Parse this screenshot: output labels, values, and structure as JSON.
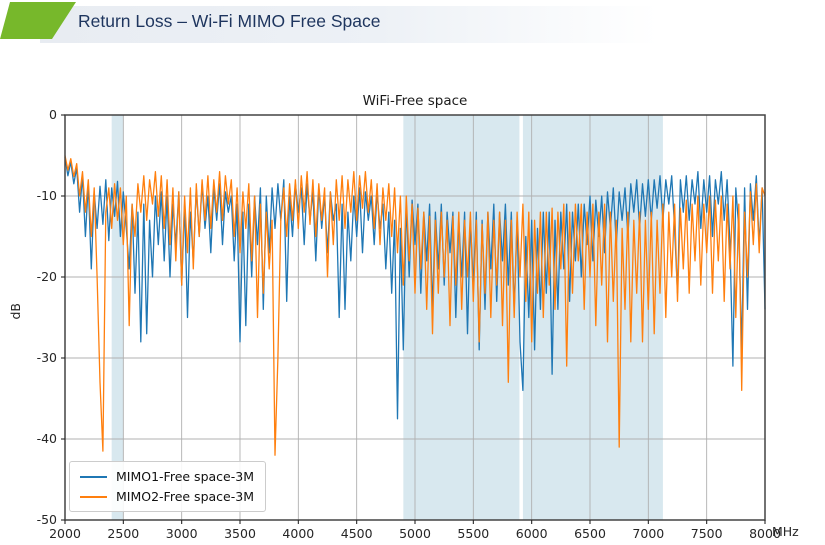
{
  "header": {
    "title": "Return Loss – Wi-Fi MIMO Free Space",
    "accent_color": "#77b82b",
    "title_color": "#1e355e"
  },
  "chart_data": {
    "type": "line",
    "title": "WiFi-Free space",
    "ylabel": "dB",
    "x_unit": "MHz",
    "xlim": [
      2000,
      8000
    ],
    "ylim": [
      -50,
      0
    ],
    "x_ticks": [
      2000,
      2500,
      3000,
      3500,
      4000,
      4500,
      5000,
      5500,
      6000,
      6500,
      7000,
      7500,
      8000
    ],
    "y_ticks": [
      0,
      -10,
      -20,
      -30,
      -40,
      -50
    ],
    "grid": true,
    "grid_color": "#b0b0b0",
    "spine_color": "#434343",
    "tick_color": "#262626",
    "legend_position": "lower left",
    "band_color": "#d8e8ef",
    "highlight_bands": [
      {
        "x0": 2400,
        "x1": 2500
      },
      {
        "x0": 4900,
        "x1": 5895
      },
      {
        "x0": 5925,
        "x1": 7125
      }
    ],
    "x_start": 2000,
    "x_step": 25,
    "series": [
      {
        "name": "MIMO1-Free space-3M",
        "color": "#1f77b4",
        "values": [
          -5.2,
          -7.5,
          -5.8,
          -8.5,
          -6.5,
          -12,
          -7.5,
          -15,
          -8.5,
          -19,
          -9.5,
          -14,
          -8.8,
          -13.5,
          -8,
          -15.5,
          -9,
          -12.5,
          -8.2,
          -15,
          -9.5,
          -14,
          -19,
          -11,
          -22,
          -12,
          -28,
          -11,
          -27,
          -13,
          -20,
          -10,
          -16,
          -9.5,
          -18,
          -10,
          -20,
          -11,
          -16,
          -9.5,
          -21,
          -11,
          -25,
          -12,
          -18,
          -9,
          -15,
          -8.5,
          -14,
          -10,
          -17,
          -9,
          -13,
          -8.5,
          -16,
          -9.5,
          -12,
          -10,
          -18,
          -11,
          -28,
          -12,
          -26,
          -11,
          -20,
          -10,
          -16,
          -9,
          -24,
          -10,
          -17,
          -9,
          -14,
          -8.5,
          -13,
          -8,
          -23,
          -10,
          -15,
          -8.5,
          -12,
          -9,
          -16,
          -8.5,
          -13,
          -9.5,
          -18,
          -9,
          -14,
          -10,
          -17,
          -9.5,
          -13,
          -11,
          -25,
          -11,
          -24,
          -12,
          -18,
          -10,
          -15,
          -9,
          -17,
          -9.5,
          -13,
          -10,
          -16,
          -9.5,
          -14,
          -11,
          -19,
          -12,
          -22,
          -13,
          -37.5,
          -14,
          -29,
          -11,
          -20,
          -10.5,
          -16,
          -11,
          -22,
          -12,
          -18,
          -11,
          -24,
          -12,
          -19,
          -11,
          -21,
          -12,
          -17,
          -12,
          -25,
          -13,
          -20,
          -12,
          -27,
          -13,
          -21,
          -12,
          -29,
          -13,
          -24,
          -12,
          -19,
          -11,
          -23,
          -12,
          -18,
          -11,
          -21,
          -12,
          -24,
          -13,
          -28,
          -34,
          -15,
          -25,
          -13,
          -29,
          -14,
          -24,
          -12,
          -22,
          -12,
          -32,
          -13,
          -24,
          -12,
          -19,
          -11,
          -23,
          -12,
          -18,
          -11,
          -20,
          -11,
          -16,
          -10,
          -18,
          -10.5,
          -15,
          -10,
          -17,
          -9.5,
          -14,
          -9,
          -16,
          -9.5,
          -13,
          -9,
          -15,
          -8.5,
          -12,
          -8,
          -14,
          -8.5,
          -12.5,
          -8,
          -13,
          -8,
          -11.5,
          -7.5,
          -13,
          -8,
          -11,
          -7.5,
          -14,
          -22,
          -8,
          -12,
          -7.5,
          -13,
          -8,
          -11,
          -7,
          -14,
          -8,
          -12,
          -7.5,
          -15,
          -8,
          -11,
          -7,
          -13,
          -8,
          -16,
          -31,
          -9,
          -14,
          -29,
          -9,
          -24,
          -8.5,
          -13,
          -7.5,
          -16,
          -9,
          -24
        ]
      },
      {
        "name": "MIMO2-Free space-3M",
        "color": "#ff7f0e",
        "values": [
          -5.0,
          -6.8,
          -5.4,
          -7.6,
          -6.0,
          -10,
          -7,
          -12,
          -8,
          -15,
          -9,
          -20,
          -33,
          -41.5,
          -12,
          -9,
          -14,
          -8.5,
          -13,
          -9,
          -16,
          -10,
          -26,
          -11,
          -15,
          -8.5,
          -12,
          -7.5,
          -13,
          -8,
          -11,
          -7,
          -12.5,
          -7.5,
          -14,
          -8,
          -16,
          -9,
          -18,
          -9.5,
          -21,
          -10,
          -17,
          -9,
          -19,
          -8.5,
          -15,
          -8,
          -13,
          -7.5,
          -14,
          -8,
          -12,
          -7,
          -13,
          -7.5,
          -11,
          -8,
          -15,
          -9,
          -17,
          -9.5,
          -14,
          -8.5,
          -18,
          -10,
          -25,
          -11,
          -22,
          -12,
          -19,
          -13,
          -42,
          -30,
          -13,
          -9,
          -15,
          -8.5,
          -13,
          -8,
          -14,
          -7.5,
          -12,
          -7,
          -13.5,
          -8,
          -15,
          -8.5,
          -13,
          -9,
          -20,
          -9.5,
          -16,
          -8,
          -13,
          -7.5,
          -14,
          -8,
          -12,
          -7,
          -13,
          -7.5,
          -11.5,
          -7,
          -12,
          -8,
          -14,
          -8.5,
          -16,
          -9,
          -13,
          -8.5,
          -15,
          -9,
          -17,
          -10,
          -21,
          -10,
          -18,
          -11,
          -22,
          -11.5,
          -19,
          -12,
          -24,
          -12.5,
          -27,
          -13,
          -22,
          -12,
          -20,
          -13,
          -26,
          -12.5,
          -21,
          -12,
          -24,
          -13,
          -20,
          -12,
          -23,
          -13,
          -28,
          -13.5,
          -22,
          -12,
          -25,
          -13,
          -21,
          -12,
          -26,
          -13,
          -33,
          -13,
          -25,
          -12,
          -20,
          -11,
          -23,
          -12,
          -28,
          -13,
          -22,
          -12,
          -25,
          -12,
          -21,
          -11.5,
          -24,
          -12,
          -19,
          -11,
          -31,
          -12,
          -22,
          -11,
          -18,
          -11,
          -24,
          -12,
          -20,
          -11,
          -26,
          -12,
          -21,
          -11,
          -28,
          -12,
          -23,
          -13,
          -41,
          -14,
          -24,
          -12,
          -28,
          -13,
          -22,
          -12,
          -28,
          -13,
          -24,
          -12,
          -27,
          -13,
          -22,
          -11,
          -25,
          -12,
          -20,
          -11,
          -23,
          -11.5,
          -19,
          -10.5,
          -22,
          -11,
          -18,
          -10,
          -21,
          -11,
          -17,
          -10,
          -22,
          -10.5,
          -18,
          -10,
          -23,
          -11,
          -19,
          -10,
          -25,
          -11,
          -34,
          -12,
          -20,
          -9.5,
          -16,
          -8.5,
          -17,
          -9,
          -10
        ]
      }
    ]
  }
}
